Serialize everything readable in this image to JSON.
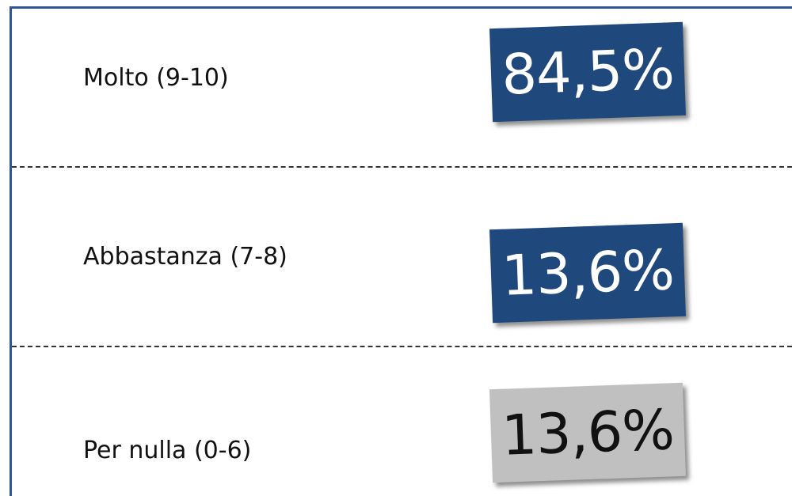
{
  "rows": [
    {
      "label": "Molto (9-10)",
      "value": "84,5%"
    },
    {
      "label": "Abbastanza (7-8)",
      "value": "13,6%"
    },
    {
      "label": "Per nulla (0-6)",
      "value": "13,6%"
    }
  ]
}
